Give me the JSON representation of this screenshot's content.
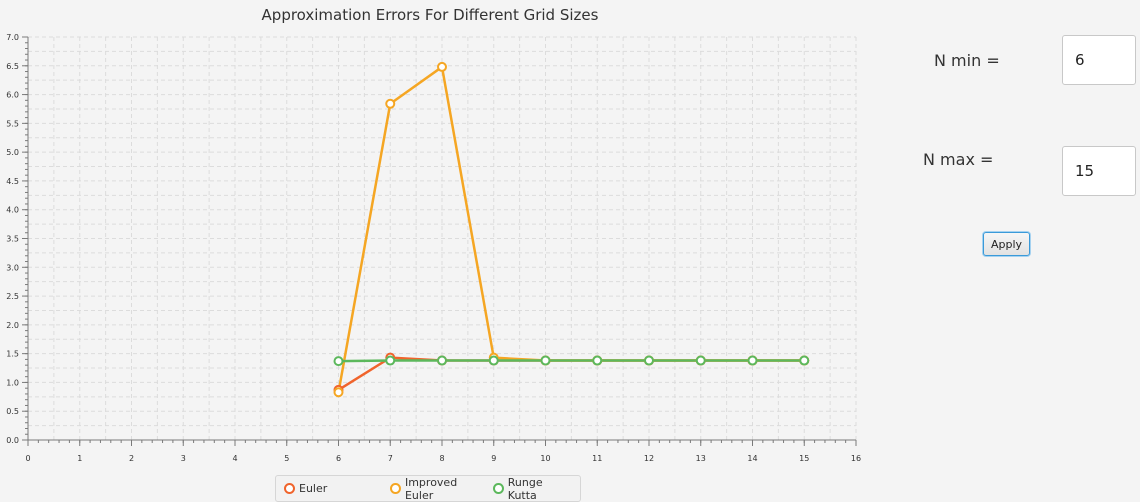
{
  "chart_data": {
    "type": "line",
    "title": "Approximation Errors For Different Grid Sizes",
    "xlabel": "",
    "ylabel": "",
    "xlim": [
      0,
      16
    ],
    "ylim": [
      0,
      7
    ],
    "x_ticks": [
      "0",
      "1",
      "2",
      "3",
      "4",
      "5",
      "6",
      "7",
      "8",
      "9",
      "10",
      "11",
      "12",
      "13",
      "14",
      "15",
      "16"
    ],
    "y_ticks": [
      "0.0",
      "0.5",
      "1.0",
      "1.5",
      "2.0",
      "2.5",
      "3.0",
      "3.5",
      "4.0",
      "4.5",
      "5.0",
      "5.5",
      "6.0",
      "6.5",
      "7.0"
    ],
    "grid": true,
    "legend_position": "bottom",
    "series": [
      {
        "name": "Euler",
        "color": "#f0642c",
        "x": [
          6,
          7,
          8,
          9,
          10,
          11,
          12,
          13,
          14,
          15
        ],
        "y": [
          0.87,
          1.43,
          1.38,
          1.38,
          1.38,
          1.38,
          1.38,
          1.38,
          1.38,
          1.38
        ]
      },
      {
        "name": "Improved Euler",
        "color": "#f5a623",
        "x": [
          6,
          7,
          8,
          9,
          10,
          11,
          12,
          13,
          14,
          15
        ],
        "y": [
          0.83,
          5.84,
          6.48,
          1.43,
          1.38,
          1.38,
          1.38,
          1.38,
          1.38,
          1.38
        ]
      },
      {
        "name": "Runge Kutta",
        "color": "#5cb85c",
        "x": [
          6,
          7,
          8,
          9,
          10,
          11,
          12,
          13,
          14,
          15
        ],
        "y": [
          1.37,
          1.38,
          1.38,
          1.38,
          1.38,
          1.38,
          1.38,
          1.38,
          1.38,
          1.38
        ]
      }
    ]
  },
  "controls": {
    "n_min_label": "N min =",
    "n_min_value": "6",
    "n_max_label": "N max =",
    "n_max_value": "15",
    "apply_label": "Apply"
  }
}
